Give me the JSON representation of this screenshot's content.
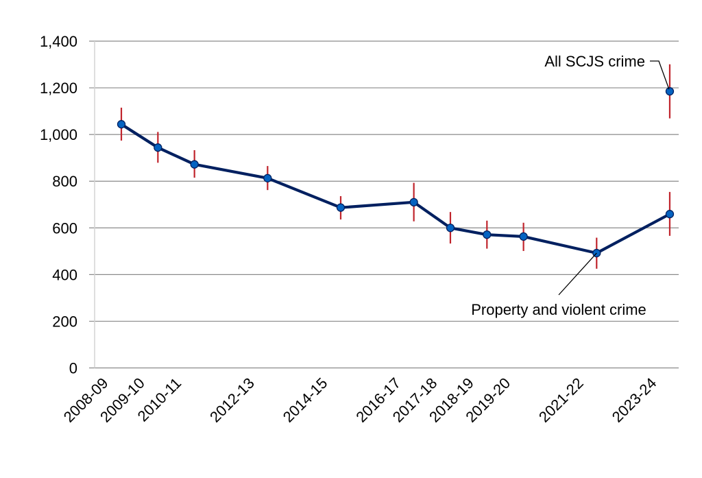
{
  "chart_data": {
    "type": "line",
    "title": "",
    "xlabel": "",
    "ylabel": "",
    "ylim": [
      0,
      1400
    ],
    "yticks": [
      0,
      200,
      400,
      600,
      800,
      1000,
      1200,
      1400
    ],
    "ytick_labels": [
      "0",
      "200",
      "400",
      "600",
      "800",
      "1,000",
      "1,200",
      "1,400"
    ],
    "grid": true,
    "legend": "none",
    "categories": [
      "2008-09",
      "2009-10",
      "2010-11",
      "2012-13",
      "2014-15",
      "2016-17",
      "2017-18",
      "2018-19",
      "2019-20",
      "2021-22",
      "2023-24"
    ],
    "category_year_index": [
      0,
      1,
      2,
      4,
      6,
      8,
      9,
      10,
      11,
      13,
      15
    ],
    "series": [
      {
        "name": "Property and violent crime",
        "values": [
          1044,
          944,
          872,
          813,
          687,
          710,
          600,
          571,
          563,
          492,
          659
        ],
        "error_low": [
          974,
          879,
          815,
          762,
          636,
          628,
          533,
          511,
          501,
          425,
          566
        ],
        "error_high": [
          1115,
          1011,
          933,
          865,
          736,
          793,
          668,
          631,
          622,
          558,
          754
        ],
        "color": "#002060",
        "marker_color": "#0563c1",
        "error_color": "#c0242c"
      },
      {
        "name": "All SCJS crime",
        "points": [
          {
            "category": "2023-24",
            "value": 1185,
            "error_low": 1069,
            "error_high": 1301
          }
        ],
        "color": "#002060",
        "marker_color": "#0563c1",
        "error_color": "#c0242c"
      }
    ],
    "annotations": [
      {
        "text": "All SCJS crime",
        "target_series": "All SCJS crime",
        "target_category": "2023-24"
      },
      {
        "text": "Property and violent crime",
        "target_series": "Property and violent crime",
        "target_category": "2021-22"
      }
    ]
  }
}
